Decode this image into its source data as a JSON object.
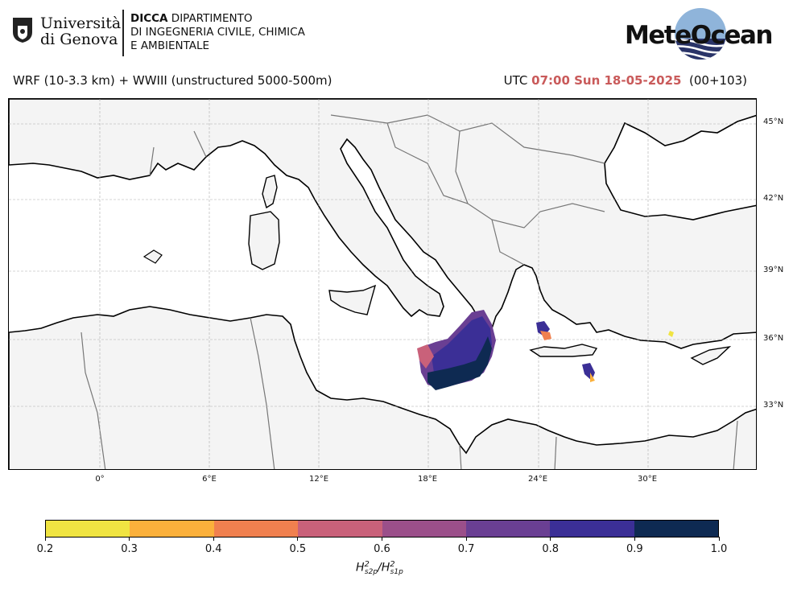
{
  "header": {
    "university_line1": "Università",
    "university_line2": "di Genova",
    "dept_bold": "DICCA",
    "dept_line1_rest": "DIPARTIMENTO",
    "dept_line2": "DI INGEGNERIA CIVILE, CHIMICA",
    "dept_line3": "E AMBIENTALE",
    "brand": "MeteOcean"
  },
  "subtitle": {
    "model": "WRF (10-3.3 km) + WWIII (unstructured 5000-500m)",
    "utc_prefix": "UTC",
    "datetime": "07:00 Sun 18-05-2025",
    "lead": "(00+103)"
  },
  "colors": {
    "accent_red": "#c95a5a",
    "land": "#f2f2f2",
    "sea": "#ffffff"
  },
  "map": {
    "lat_labels": [
      "45°N",
      "42°N",
      "39°N",
      "36°N",
      "33°N"
    ],
    "lon_labels": [
      "0°",
      "6°E",
      "12°E",
      "18°E",
      "24°E",
      "30°E"
    ],
    "grid": true
  },
  "colorbar": {
    "ticks": [
      "0.2",
      "0.3",
      "0.4",
      "0.5",
      "0.6",
      "0.7",
      "0.8",
      "0.9",
      "1.0"
    ],
    "colors": [
      "#f0e442",
      "#fbb03b",
      "#f0804f",
      "#c9617a",
      "#9b4f8a",
      "#6a3f93",
      "#3b2f96",
      "#0e2a52"
    ],
    "label_main": "H",
    "label_sup": "2",
    "label_sub1": "s2p",
    "label_sub2": "s1p"
  }
}
